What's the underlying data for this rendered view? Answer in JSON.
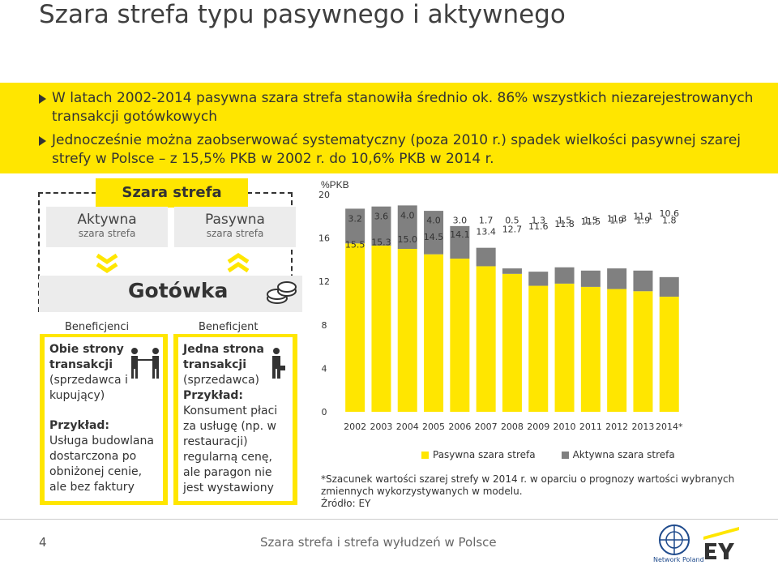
{
  "title": "Szara strefa typu pasywnego i aktywnego",
  "bullets": [
    "W latach 2002-2014 pasywna szara strefa stanowiła średnio ok. 86% wszystkich niezarejestrowanych transakcji gotówkowych",
    "Jednocześnie można zaobserwować systematyczny (poza 2010 r.) spadek wielkości pasywnej szarej strefy w Polsce – z 15,5% PKB w 2002 r. do 10,6% PKB w 2014 r."
  ],
  "diagram": {
    "header": "Szara strefa",
    "active_title": "Aktywna",
    "active_sub": "szara strefa",
    "passive_title": "Pasywna",
    "passive_sub": "szara strefa",
    "cash": "Gotówka",
    "beneficiaries_left_header": "Beneficjenci",
    "beneficiaries_right_header": "Beneficjent",
    "left_box": {
      "bold": "Obie strony transakcji",
      "normal": "(sprzedawca i kupujący)",
      "example_label": "Przykład:",
      "example": "Usługa budowlana dostarczona po obniżonej cenie, ale bez faktury"
    },
    "right_box": {
      "bold": "Jedna strona transakcji",
      "normal": "(sprzedawca)",
      "example_label": "Przykład:",
      "example": "Konsument płaci za usługę (np. w restauracji) regularną cenę, ale paragon nie jest wystawiony"
    }
  },
  "chart_data": {
    "type": "bar",
    "stacked": true,
    "ylabel": "%PKB",
    "ylim": [
      0,
      20
    ],
    "yticks": [
      0,
      4,
      8,
      12,
      16,
      20
    ],
    "categories": [
      "2002",
      "2003",
      "2004",
      "2005",
      "2006",
      "2007",
      "2008",
      "2009",
      "2010",
      "2011",
      "2012",
      "2013",
      "2014*"
    ],
    "series": [
      {
        "name": "Pasywna szara strefa",
        "color": "#ffe600",
        "values": [
          15.5,
          15.3,
          15.0,
          14.5,
          14.1,
          13.4,
          12.7,
          11.6,
          11.8,
          11.5,
          11.3,
          11.1,
          10.6
        ]
      },
      {
        "name": "Aktywna szara strefa",
        "color": "#808080",
        "values": [
          3.2,
          3.6,
          4.0,
          4.0,
          3.0,
          1.7,
          0.5,
          1.3,
          1.5,
          1.5,
          1.9,
          1.9,
          1.8
        ]
      }
    ],
    "legend_position": "bottom",
    "grid": false
  },
  "note": "*Szacunek wartości szarej strefy w 2014 r. w oparciu o prognozy wartości wybranych zmiennych wykorzystywanych w modelu.",
  "source": "Źródło: EY",
  "footer": {
    "page": "4",
    "text": "Szara strefa i strefa wyłudzeń w Polsce",
    "network": "Network Poland"
  },
  "colors": {
    "yellow": "#ffe600",
    "grey": "#808080",
    "dark": "#333333"
  }
}
